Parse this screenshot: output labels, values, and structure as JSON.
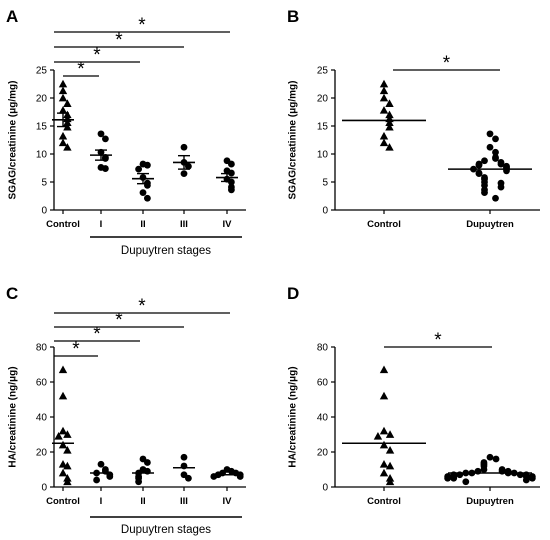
{
  "chart_data": [
    {
      "id": "A",
      "panel_label": "A",
      "type": "scatter",
      "title": "",
      "ylabel": "SGAG/creatinine (μg/mg)",
      "xlabel": "Dupuytren stages",
      "ylim": [
        0,
        25
      ],
      "yticks": [
        "0",
        "5",
        "10",
        "15",
        "20",
        "25"
      ],
      "yticks_values": [
        0,
        5,
        10,
        15,
        20,
        25
      ],
      "categories": [
        "Control",
        "I",
        "II",
        "III",
        "IV"
      ],
      "markers": [
        "triangle",
        "circle",
        "circle",
        "circle",
        "circle"
      ],
      "points": [
        [
          22.5,
          21.3,
          20.0,
          19.0,
          17.8,
          17.0,
          16.3,
          15.6,
          14.8,
          13.2,
          12.0,
          11.2
        ],
        [
          13.6,
          12.7,
          10.3,
          9.4,
          9.2,
          7.6,
          7.4
        ],
        [
          8.2,
          8.0,
          7.3,
          5.8,
          4.8,
          4.4,
          3.1,
          2.1
        ],
        [
          11.2,
          8.5,
          7.8,
          6.5
        ],
        [
          8.8,
          8.2,
          7.0,
          6.6,
          5.5,
          5.0,
          4.1,
          3.6
        ]
      ],
      "means": [
        16.1,
        9.8,
        5.6,
        8.5,
        5.8
      ],
      "sem": [
        1.2,
        0.9,
        0.9,
        1.2,
        0.7
      ],
      "annotations": [
        {
          "from": "Control",
          "to": "I",
          "text": "*"
        },
        {
          "from": "Control",
          "to": "II",
          "text": "*"
        },
        {
          "from": "Control",
          "to": "III",
          "text": "*"
        },
        {
          "from": "Control",
          "to": "IV",
          "text": "*"
        }
      ]
    },
    {
      "id": "B",
      "panel_label": "B",
      "type": "scatter",
      "title": "",
      "ylabel": "SGAG/creatinine (μg/mg)",
      "xlabel": "",
      "ylim": [
        0,
        25
      ],
      "yticks": [
        "0",
        "5",
        "10",
        "15",
        "20",
        "25"
      ],
      "yticks_values": [
        0,
        5,
        10,
        15,
        20,
        25
      ],
      "categories": [
        "Control",
        "Dupuytren"
      ],
      "markers": [
        "triangle",
        "circle"
      ],
      "points": [
        [
          22.5,
          21.3,
          20.0,
          19.0,
          17.8,
          17.0,
          16.3,
          15.6,
          14.8,
          13.2,
          12.0,
          11.2
        ],
        [
          13.6,
          12.7,
          11.2,
          10.3,
          9.4,
          9.2,
          8.8,
          8.5,
          8.2,
          8.2,
          8.0,
          7.8,
          7.6,
          7.4,
          7.3,
          7.0,
          6.6,
          6.5,
          5.8,
          5.5,
          5.0,
          4.8,
          4.4,
          4.1,
          3.6,
          3.1,
          2.1
        ]
      ],
      "means": [
        16.0,
        7.3
      ],
      "sem": null,
      "annotations": [
        {
          "from": "Control",
          "to": "Dupuytren",
          "text": "*"
        }
      ]
    },
    {
      "id": "C",
      "panel_label": "C",
      "type": "scatter",
      "title": "",
      "ylabel": "HA/creatinine (ng/μg)",
      "xlabel": "Dupuytren stages",
      "ylim": [
        0,
        80
      ],
      "yticks": [
        "0",
        "20",
        "40",
        "60",
        "80"
      ],
      "yticks_values": [
        0,
        20,
        40,
        60,
        80
      ],
      "categories": [
        "Control",
        "I",
        "II",
        "III",
        "IV"
      ],
      "markers": [
        "triangle",
        "circle",
        "circle",
        "circle",
        "circle"
      ],
      "points": [
        [
          67,
          52,
          32,
          30,
          29,
          24,
          21,
          13,
          12,
          8,
          5,
          3
        ],
        [
          13,
          10,
          9,
          8,
          7,
          6,
          4
        ],
        [
          16,
          14,
          10,
          9,
          8,
          6,
          5,
          3
        ],
        [
          17,
          12,
          7,
          5
        ],
        [
          10,
          9,
          8,
          8,
          7,
          7,
          6,
          6
        ]
      ],
      "means": [
        25,
        8,
        8,
        11,
        7
      ],
      "sem": null,
      "annotations": [
        {
          "from": "Control",
          "to": "I",
          "text": "*"
        },
        {
          "from": "Control",
          "to": "II",
          "text": "*"
        },
        {
          "from": "Control",
          "to": "III",
          "text": "*"
        },
        {
          "from": "Control",
          "to": "IV",
          "text": "*"
        }
      ]
    },
    {
      "id": "D",
      "panel_label": "D",
      "type": "scatter",
      "title": "",
      "ylabel": "HA/creatinine (ng/μg)",
      "xlabel": "",
      "ylim": [
        0,
        80
      ],
      "yticks": [
        "0",
        "20",
        "40",
        "60",
        "80"
      ],
      "yticks_values": [
        0,
        20,
        40,
        60,
        80
      ],
      "categories": [
        "Control",
        "Dupuytren"
      ],
      "markers": [
        "triangle",
        "circle"
      ],
      "points": [
        [
          67,
          52,
          32,
          30,
          29,
          24,
          21,
          13,
          12,
          8,
          5,
          3
        ],
        [
          17,
          16,
          14,
          13,
          12,
          10,
          10,
          9,
          9,
          9,
          8,
          8,
          8,
          8,
          7,
          7,
          7,
          7,
          6,
          6,
          6,
          6,
          5,
          5,
          5,
          4,
          3
        ]
      ],
      "means": [
        25,
        8
      ],
      "sem": null,
      "annotations": [
        {
          "from": "Control",
          "to": "Dupuytren",
          "text": "*"
        }
      ]
    }
  ]
}
